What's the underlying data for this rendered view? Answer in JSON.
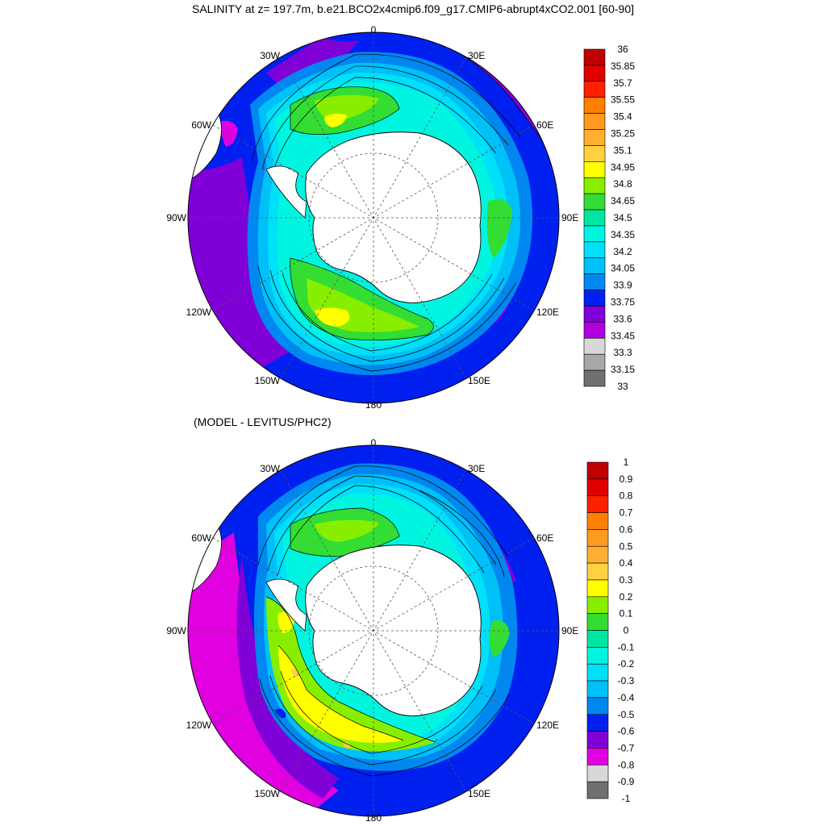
{
  "title_top": "SALINITY at z= 197.7m, b.e21.BCO2x4cmip6.f09_g17.CMIP6-abrupt4xCO2.001 [60-90]",
  "title_bottom": "(MODEL - LEVITUS/PHC2)",
  "longitude_labels": [
    "0",
    "30E",
    "60E",
    "90E",
    "120E",
    "150E",
    "180",
    "150W",
    "120W",
    "90W",
    "60W",
    "30W"
  ],
  "top_colorbar": {
    "labels": [
      "36",
      "35.85",
      "35.7",
      "35.55",
      "35.4",
      "35.25",
      "35.1",
      "34.95",
      "34.8",
      "34.65",
      "34.5",
      "34.35",
      "34.2",
      "34.05",
      "33.9",
      "33.75",
      "33.6",
      "33.45",
      "33.3",
      "33.15",
      "33"
    ],
    "colors": [
      "#c00000",
      "#e00000",
      "#ff2000",
      "#ff8000",
      "#ff9a20",
      "#ffb030",
      "#ffd040",
      "#ffff00",
      "#88ee00",
      "#33dd33",
      "#00e6a0",
      "#00f5e0",
      "#00e0f8",
      "#00c0f8",
      "#0088f0",
      "#0020f0",
      "#8000d8",
      "#b000e0",
      "#d8d8d8",
      "#a8a8a8",
      "#707070"
    ]
  },
  "bottom_colorbar": {
    "labels": [
      "1",
      "0.9",
      "0.8",
      "0.7",
      "0.6",
      "0.5",
      "0.4",
      "0.3",
      "0.2",
      "0.1",
      "0",
      "-0.1",
      "-0.2",
      "-0.3",
      "-0.4",
      "-0.5",
      "-0.6",
      "-0.7",
      "-0.8",
      "-0.9",
      "-1"
    ],
    "colors": [
      "#c00000",
      "#e00000",
      "#ff2000",
      "#ff8000",
      "#ff9a20",
      "#ffb030",
      "#ffd040",
      "#ffff00",
      "#88ee00",
      "#33dd33",
      "#00e6a0",
      "#00f5e0",
      "#00e0f8",
      "#00c0f8",
      "#0088f0",
      "#0020f0",
      "#8000d8",
      "#e000e0",
      "#d8d8d8",
      "#707070"
    ]
  },
  "colors": {
    "land": "#ffffff",
    "coast": "#000000",
    "graticule": "#555555"
  }
}
